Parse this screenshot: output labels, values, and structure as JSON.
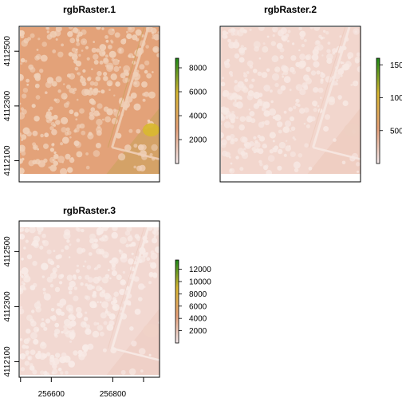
{
  "chart_data": [
    {
      "type": "heatmap",
      "title": "rgbRaster.1",
      "y_ticks": [
        "4112100",
        "4112300",
        "4112500"
      ],
      "x_ticks": [],
      "legend": {
        "min": 0,
        "max": 8800,
        "ticks": [
          "2000",
          "4000",
          "6000",
          "8000"
        ]
      },
      "palette": [
        "#f4e9ec",
        "#e9a27a",
        "#d9b832",
        "#1e8a17"
      ],
      "base_color": "#e3a279",
      "speck_color": "#f0d0b8",
      "shade_color": "#c8a35a",
      "hotspot_color": "#d9b832"
    },
    {
      "type": "heatmap",
      "title": "rgbRaster.2",
      "y_ticks": [],
      "x_ticks": [],
      "legend": {
        "min": 0,
        "max": 16000,
        "ticks": [
          "500",
          "100",
          "150"
        ]
      },
      "palette": [
        "#f4e9ec",
        "#e9a27a",
        "#d9b832",
        "#1e8a17"
      ],
      "base_color": "#f2d6cd",
      "speck_color": "#f7e8e3",
      "shade_color": "#edc8ba",
      "hotspot_color": "#edcfc2"
    },
    {
      "type": "heatmap",
      "title": "rgbRaster.3",
      "y_ticks": [
        "4112100",
        "4112300",
        "4112500"
      ],
      "x_ticks": [
        "256600",
        "256800"
      ],
      "legend": {
        "min": 0,
        "max": 13500,
        "ticks": [
          "2000",
          "4000",
          "6000",
          "8000",
          "10000",
          "12000"
        ]
      },
      "palette": [
        "#f4e9ec",
        "#e9a27a",
        "#d9b832",
        "#1e8a17"
      ],
      "base_color": "#f2d8d1",
      "speck_color": "#f8ebe7",
      "shade_color": "#edcbbf",
      "hotspot_color": "#efd2c7"
    }
  ]
}
